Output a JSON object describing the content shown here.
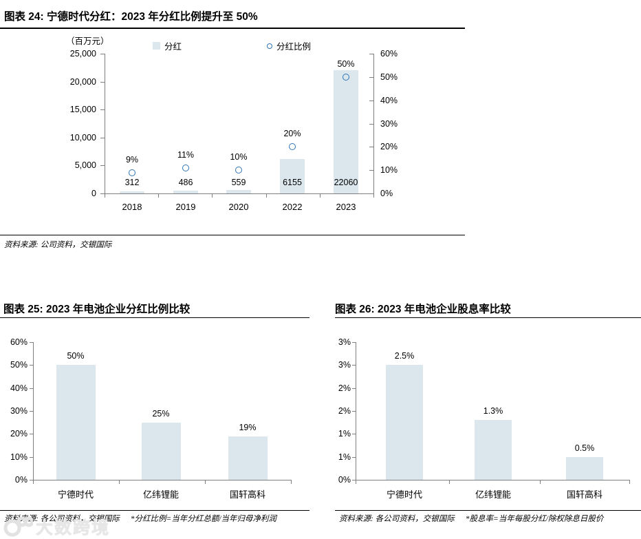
{
  "colors": {
    "bar_fill": "#dbe7ed",
    "marker_stroke": "#2e74b5",
    "axis_line": "#7f7f7f",
    "rule": "#000000",
    "watermark": "#e7e7e7"
  },
  "watermark": {
    "text": "大数跨境"
  },
  "chart_data": [
    {
      "type": "bar",
      "title": "图表 24: 宁德时代分红：2023 年分红比例提升至 50%",
      "categories": [
        "2018",
        "2019",
        "2020",
        "2022",
        "2023"
      ],
      "series": [
        {
          "name": "分红",
          "type": "bar",
          "axis": "left",
          "values": [
            312,
            486,
            559,
            6155,
            22060
          ],
          "labels": [
            "312",
            "486",
            "559",
            "6155",
            "22060"
          ]
        },
        {
          "name": "分红比例",
          "type": "scatter",
          "axis": "right",
          "values": [
            9,
            11,
            10,
            20,
            50
          ],
          "labels": [
            "9%",
            "11%",
            "10%",
            "20%",
            "50%"
          ]
        }
      ],
      "left_axis": {
        "unit": "（百万元）",
        "min": 0,
        "max": 25000,
        "ticks": [
          "25,000",
          "20,000",
          "15,000",
          "10,000",
          "5,000",
          "0"
        ]
      },
      "right_axis": {
        "min": 0,
        "max": 60,
        "ticks": [
          "60%",
          "50%",
          "40%",
          "30%",
          "20%",
          "10%",
          "0%"
        ]
      },
      "legend_position": "top",
      "grid": false,
      "source": "资料来源: 公司资料，交银国际"
    },
    {
      "type": "bar",
      "title": "图表 25: 2023 年电池企业分红比例比较",
      "categories": [
        "宁德时代",
        "亿纬锂能",
        "国轩高科"
      ],
      "values": [
        50,
        25,
        19
      ],
      "labels": [
        "50%",
        "25%",
        "19%"
      ],
      "ylim": [
        0,
        60
      ],
      "yticks": [
        "60%",
        "50%",
        "40%",
        "30%",
        "20%",
        "10%",
        "0%"
      ],
      "grid": false,
      "source": "资料来源: 各公司资料，交银国际",
      "footnote": "*分红比例=当年分红总额/当年归母净利润"
    },
    {
      "type": "bar",
      "title": "图表 26: 2023 年电池企业股息率比较",
      "categories": [
        "宁德时代",
        "亿纬锂能",
        "国轩高科"
      ],
      "values": [
        2.5,
        1.3,
        0.5
      ],
      "labels": [
        "2.5%",
        "1.3%",
        "0.5%"
      ],
      "ylim": [
        0,
        3
      ],
      "yticks": [
        "3%",
        "3%",
        "2%",
        "2%",
        "1%",
        "1%",
        "0%"
      ],
      "grid": false,
      "source": "资料来源: 各公司资料，交银国际",
      "footnote": "*股息率=当年每股分红/除权除息日股价"
    }
  ]
}
